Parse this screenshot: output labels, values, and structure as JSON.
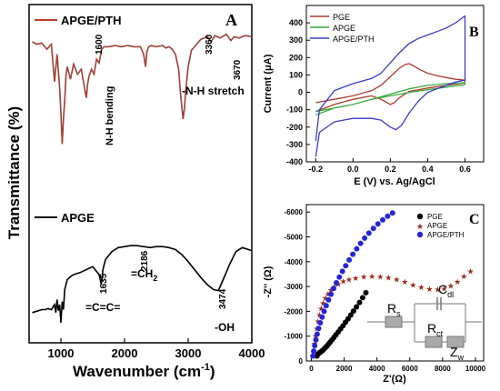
{
  "chart_data": [
    {
      "panel": "A",
      "type": "line",
      "xlabel": "Wavenumber (cm",
      "xlabel_sup": "-1",
      "xlabel_end": ")",
      "ylabel": "Transmittance (%)",
      "xlim": [
        500,
        4000
      ],
      "x_ticks": [
        1000,
        2000,
        3000,
        4000
      ],
      "y_ticks": "none",
      "series": [
        {
          "name": "APGE/PTH",
          "color": "#c0392b",
          "x": [
            550,
            620,
            700,
            780,
            850,
            900,
            940,
            980,
            1000,
            1020,
            1040,
            1060,
            1080,
            1100,
            1150,
            1200,
            1260,
            1320,
            1360,
            1400,
            1420,
            1440,
            1480,
            1520,
            1560,
            1600,
            1640,
            1680,
            1750,
            1850,
            1950,
            2050,
            2150,
            2250,
            2300,
            2330,
            2350,
            2380,
            2420,
            2500,
            2600,
            2650,
            2700,
            2750,
            2800,
            2850,
            2880,
            2920,
            2940,
            2960,
            3000,
            3050,
            3100,
            3200,
            3300,
            3360,
            3420,
            3500,
            3600,
            3670,
            3720,
            3800,
            3900,
            4000
          ],
          "y": [
            92,
            90,
            91,
            86,
            90,
            60,
            82,
            55,
            35,
            10,
            30,
            45,
            65,
            72,
            62,
            74,
            66,
            70,
            58,
            47,
            58,
            64,
            70,
            66,
            78,
            75,
            86,
            88,
            88,
            89,
            88,
            89,
            88,
            88,
            82,
            72,
            84,
            88,
            89,
            88,
            89,
            87,
            88,
            86,
            82,
            70,
            50,
            30,
            38,
            52,
            72,
            85,
            88,
            94,
            96,
            92,
            97,
            95,
            98,
            93,
            96,
            95,
            97,
            96
          ]
        },
        {
          "name": "APGE",
          "color": "#000000",
          "x": [
            550,
            600,
            650,
            700,
            750,
            800,
            850,
            880,
            900,
            920,
            940,
            960,
            980,
            1000,
            1020,
            1040,
            1060,
            1080,
            1100,
            1150,
            1200,
            1300,
            1400,
            1500,
            1600,
            1635,
            1660,
            1700,
            1800,
            1900,
            2000,
            2100,
            2186,
            2300,
            2400,
            2500,
            2600,
            2700,
            2800,
            2900,
            3000,
            3100,
            3200,
            3300,
            3400,
            3474,
            3550,
            3650,
            3750,
            3850,
            3950,
            4000
          ],
          "y": [
            22,
            23,
            24,
            25,
            25,
            26,
            25,
            28,
            30,
            22,
            35,
            24,
            30,
            12,
            33,
            25,
            45,
            50,
            55,
            58,
            60,
            62,
            65,
            68,
            60,
            50,
            65,
            75,
            83,
            87,
            88,
            89,
            89,
            88,
            87,
            88,
            88,
            87,
            85,
            80,
            73,
            65,
            57,
            50,
            45,
            44,
            55,
            70,
            83,
            87,
            85,
            84
          ]
        }
      ],
      "annotations": [
        "N-H bending",
        "1600",
        "3360",
        "3670",
        "-N-H stretch",
        "1635",
        "=C=C=",
        "2186",
        "=CH",
        "2",
        "3474",
        "-OH"
      ],
      "legend": [
        "APGE/PTH",
        "APGE"
      ]
    },
    {
      "panel": "B",
      "type": "line",
      "xlabel": "E (V) vs. Ag/AgCl",
      "ylabel": "Current (μA)",
      "xlim": [
        -0.25,
        0.7
      ],
      "ylim": [
        -400,
        500
      ],
      "x_ticks": [
        "-0.2",
        "0.0",
        "0.2",
        "0.4",
        "0.6"
      ],
      "y_ticks": [
        "-400",
        "-300",
        "-200",
        "-100",
        "0",
        "100",
        "200",
        "300",
        "400"
      ],
      "legend_position": "top-left",
      "series": [
        {
          "name": "PGE",
          "color": "#b03a2e",
          "x": [
            -0.2,
            -0.1,
            0.0,
            0.1,
            0.15,
            0.2,
            0.25,
            0.28,
            0.3,
            0.32,
            0.36,
            0.4,
            0.45,
            0.5,
            0.55,
            0.6,
            0.6,
            0.5,
            0.4,
            0.3,
            0.25,
            0.22,
            0.2,
            0.15,
            0.1,
            0.0,
            -0.1,
            -0.2
          ],
          "y": [
            -60,
            -40,
            -20,
            10,
            40,
            90,
            140,
            160,
            165,
            155,
            130,
            110,
            95,
            85,
            75,
            70,
            55,
            40,
            25,
            5,
            -30,
            -60,
            -70,
            -40,
            -20,
            -40,
            -70,
            -110
          ]
        },
        {
          "name": "APGE",
          "color": "#3daa3d",
          "x": [
            -0.2,
            -0.1,
            0.0,
            0.1,
            0.2,
            0.3,
            0.4,
            0.5,
            0.6,
            0.6,
            0.5,
            0.4,
            0.3,
            0.2,
            0.1,
            0.0,
            -0.1,
            -0.2
          ],
          "y": [
            -110,
            -90,
            -70,
            -40,
            -10,
            20,
            40,
            50,
            55,
            45,
            30,
            15,
            0,
            -20,
            -40,
            -70,
            -90,
            -130
          ]
        },
        {
          "name": "APGE/PTH",
          "color": "#3a3ad0",
          "x": [
            -0.2,
            -0.18,
            -0.1,
            0.0,
            0.1,
            0.15,
            0.2,
            0.25,
            0.3,
            0.35,
            0.4,
            0.45,
            0.5,
            0.55,
            0.6,
            0.6,
            0.55,
            0.5,
            0.45,
            0.4,
            0.35,
            0.3,
            0.26,
            0.23,
            0.2,
            0.15,
            0.1,
            0.0,
            -0.1,
            -0.18,
            -0.2
          ],
          "y": [
            -280,
            -100,
            10,
            50,
            80,
            110,
            170,
            230,
            280,
            310,
            330,
            350,
            370,
            400,
            440,
            70,
            60,
            40,
            20,
            0,
            -50,
            -120,
            -190,
            -215,
            -200,
            -160,
            -150,
            -150,
            -170,
            -230,
            -370
          ]
        }
      ]
    },
    {
      "panel": "C",
      "type": "scatter",
      "xlabel": "Z'(Ω)",
      "ylabel": "-Z'' (Ω)",
      "xlim": [
        -300,
        10500
      ],
      "ylim": [
        0,
        -6300
      ],
      "x_ticks": [
        "0",
        "2000",
        "4000",
        "6000",
        "8000",
        "10000"
      ],
      "y_ticks": [
        "0",
        "-1000",
        "-2000",
        "-3000",
        "-4000",
        "-5000",
        "-6000"
      ],
      "legend_position": "top-right",
      "series": [
        {
          "name": "PGE",
          "color": "#000000",
          "marker": "circle",
          "x": [
            350,
            420,
            500,
            560,
            620,
            700,
            780,
            860,
            950,
            1050,
            1150,
            1260,
            1380,
            1500,
            1640,
            1780,
            1930,
            2080,
            2240,
            2400,
            2570,
            2750,
            2940,
            3130,
            3330
          ],
          "y": [
            -200,
            -280,
            -330,
            -360,
            -390,
            -430,
            -480,
            -540,
            -600,
            -680,
            -760,
            -850,
            -950,
            -1050,
            -1170,
            -1290,
            -1420,
            -1560,
            -1700,
            -1850,
            -2010,
            -2180,
            -2360,
            -2550,
            -2750
          ]
        },
        {
          "name": "APGE",
          "color": "#9a2a1a",
          "marker": "star",
          "x": [
            150,
            200,
            260,
            330,
            410,
            500,
            600,
            720,
            860,
            1020,
            1200,
            1400,
            1650,
            1950,
            2300,
            2700,
            3200,
            3700,
            4200,
            4700,
            5200,
            5700,
            6200,
            6700,
            7200,
            7700,
            8100,
            8500,
            8900,
            9300,
            9700
          ],
          "y": [
            -400,
            -700,
            -1000,
            -1300,
            -1600,
            -1850,
            -2100,
            -2320,
            -2520,
            -2700,
            -2850,
            -2980,
            -3100,
            -3200,
            -3280,
            -3340,
            -3380,
            -3400,
            -3390,
            -3350,
            -3280,
            -3180,
            -3060,
            -2960,
            -2900,
            -2880,
            -2920,
            -3020,
            -3180,
            -3400,
            -3600
          ]
        },
        {
          "name": "APGE/PTH",
          "color": "#2525d8",
          "marker": "circle",
          "x": [
            100,
            150,
            210,
            280,
            360,
            450,
            550,
            660,
            780,
            910,
            1050,
            1200,
            1360,
            1530,
            1710,
            1900,
            2100,
            2310,
            2530,
            2760,
            3000,
            3250,
            3510,
            3780,
            4060,
            4350,
            4650,
            4950
          ],
          "y": [
            -200,
            -400,
            -620,
            -850,
            -1080,
            -1310,
            -1540,
            -1770,
            -2000,
            -2230,
            -2460,
            -2690,
            -2920,
            -3150,
            -3380,
            -3610,
            -3840,
            -4070,
            -4300,
            -4520,
            -4740,
            -4950,
            -5150,
            -5340,
            -5520,
            -5680,
            -5830,
            -5960
          ]
        }
      ],
      "circuit_labels": {
        "rs": "R",
        "rs_sub": "s",
        "cdl": "C",
        "cdl_sub": "dl",
        "rct": "R",
        "rct_sub": "ct",
        "zw": "Z",
        "zw_sub": "w"
      }
    }
  ],
  "panel_labels": [
    "A",
    "B",
    "C"
  ],
  "colors": {
    "apge_pth_ftir": "#c0392b",
    "pge": "#b03a2e",
    "apge_cv": "#3daa3d",
    "apge_pth_cv": "#3a3ad0",
    "eis_apge": "#9a2a1a",
    "eis_pth": "#2525d8"
  }
}
